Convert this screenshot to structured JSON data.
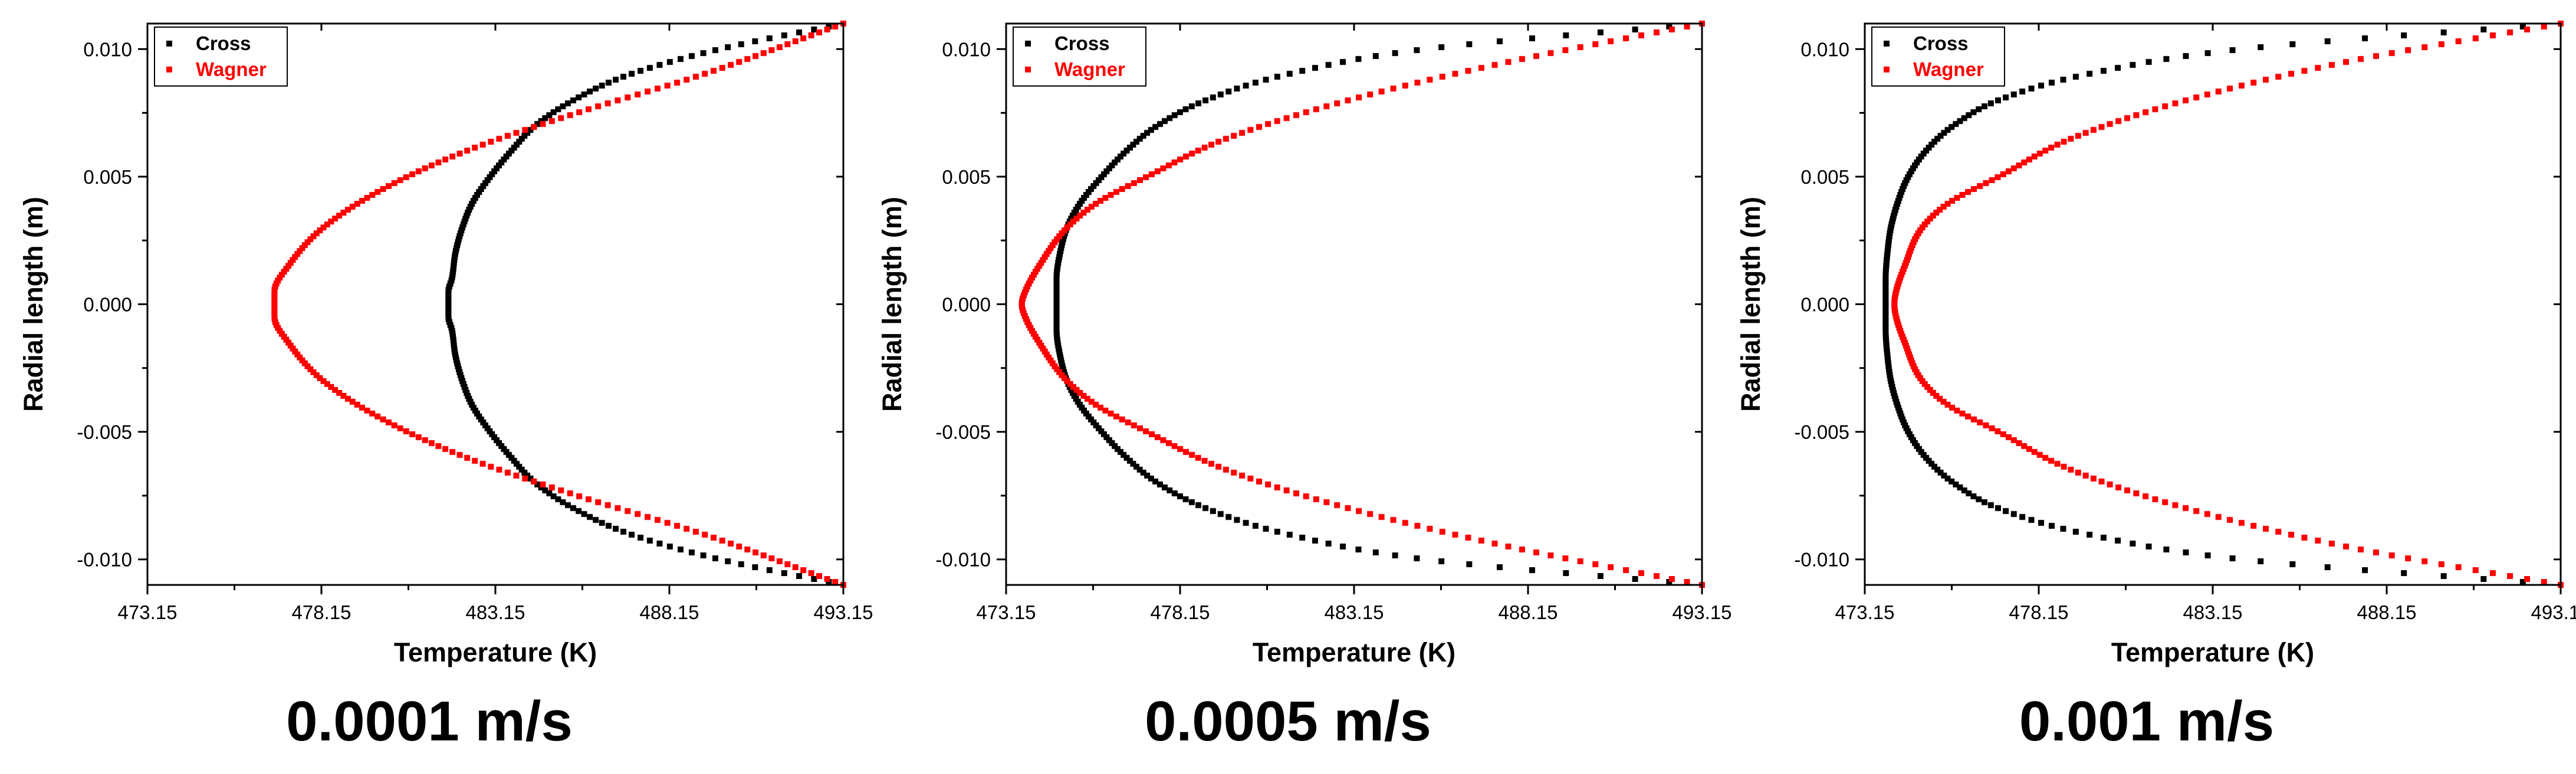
{
  "figure": {
    "panels": [
      {
        "caption": "0.0001 m/s"
      },
      {
        "caption": "0.0005 m/s"
      },
      {
        "caption": "0.001 m/s"
      }
    ]
  },
  "chart_data": [
    {
      "type": "scatter",
      "title": "",
      "xlabel": "Temperature (K)",
      "ylabel": "Radial length (m)",
      "xlim": [
        473.15,
        493.15
      ],
      "ylim": [
        -0.011,
        0.011
      ],
      "xticks": [
        "473.15",
        "478.15",
        "483.15",
        "488.15",
        "493.15"
      ],
      "yticks": [
        "-0.010",
        "-0.005",
        "0.000",
        "0.005",
        "0.010"
      ],
      "legend": "top-left",
      "series": [
        {
          "name": "Cross",
          "color": "#000000",
          "x": [
            493.15,
            489.6,
            487.0,
            485.4,
            484.3,
            483.6,
            483.0,
            482.5,
            482.2,
            482.0,
            481.9,
            481.8,
            481.8,
            481.8,
            481.9,
            482.0,
            482.2,
            482.5,
            483.0,
            483.6,
            484.3,
            485.4,
            487.0,
            489.6,
            493.15
          ],
          "y": [
            0.011,
            0.01,
            0.009,
            0.008,
            0.007,
            0.006,
            0.005,
            0.004,
            0.003,
            0.002,
            0.001,
            0.0005,
            0.0,
            -0.0005,
            -0.001,
            -0.002,
            -0.003,
            -0.004,
            -0.005,
            -0.006,
            -0.007,
            -0.008,
            -0.009,
            -0.01,
            -0.011
          ]
        },
        {
          "name": "Wagner",
          "color": "#ff0000",
          "x": [
            493.15,
            489.1,
            485.5,
            482.3,
            479.9,
            478.2,
            477.2,
            476.8,
            476.8,
            477.2,
            478.2,
            479.9,
            482.3,
            485.5,
            489.1,
            493.15
          ],
          "y": [
            0.011,
            0.009,
            0.0075,
            0.006,
            0.0045,
            0.003,
            0.0015,
            0.0005,
            -0.0005,
            -0.0015,
            -0.003,
            -0.0045,
            -0.006,
            -0.0075,
            -0.009,
            -0.011
          ]
        }
      ]
    },
    {
      "type": "scatter",
      "title": "",
      "xlabel": "Temperature (K)",
      "ylabel": "Radial length (m)",
      "xlim": [
        473.15,
        493.15
      ],
      "ylim": [
        -0.011,
        0.011
      ],
      "xticks": [
        "473.15",
        "478.15",
        "483.15",
        "488.15",
        "493.15"
      ],
      "yticks": [
        "-0.010",
        "-0.005",
        "0.000",
        "0.005",
        "0.010"
      ],
      "legend": "top-left",
      "series": [
        {
          "name": "Cross",
          "color": "#000000",
          "x": [
            493.15,
            485.2,
            481.2,
            478.9,
            477.5,
            476.6,
            475.9,
            475.3,
            474.9,
            474.7,
            474.6,
            474.6,
            474.6,
            474.7,
            474.9,
            475.3,
            475.9,
            476.6,
            477.5,
            478.9,
            481.2,
            485.2,
            493.15
          ],
          "y": [
            0.011,
            0.01,
            0.009,
            0.008,
            0.007,
            0.006,
            0.005,
            0.004,
            0.003,
            0.002,
            0.001,
            0.0,
            -0.001,
            -0.002,
            -0.003,
            -0.004,
            -0.005,
            -0.006,
            -0.007,
            -0.008,
            -0.009,
            -0.01,
            -0.011
          ]
        },
        {
          "name": "Wagner",
          "color": "#ff0000",
          "x": [
            493.15,
            487.6,
            483.0,
            479.5,
            477.2,
            475.8,
            474.9,
            474.1,
            473.7,
            473.6,
            473.7,
            474.1,
            474.9,
            475.8,
            477.2,
            479.5,
            483.0,
            487.6,
            493.15
          ],
          "y": [
            0.011,
            0.0095,
            0.008,
            0.0065,
            0.005,
            0.004,
            0.003,
            0.0015,
            0.0005,
            0.0,
            -0.0005,
            -0.0015,
            -0.003,
            -0.004,
            -0.005,
            -0.0065,
            -0.008,
            -0.0095,
            -0.011
          ]
        }
      ]
    },
    {
      "type": "scatter",
      "title": "",
      "xlabel": "Temperature (K)",
      "ylabel": "Radial length (m)",
      "xlim": [
        473.15,
        493.15
      ],
      "ylim": [
        -0.011,
        0.011
      ],
      "xticks": [
        "473.15",
        "478.15",
        "483.15",
        "488.15",
        "493.15"
      ],
      "yticks": [
        "-0.010",
        "-0.005",
        "0.000",
        "0.005",
        "0.010"
      ],
      "legend": "top-left",
      "series": [
        {
          "name": "Cross",
          "color": "#000000",
          "x": [
            493.15,
            484.0,
            479.5,
            477.0,
            475.7,
            474.9,
            474.4,
            474.1,
            473.9,
            473.8,
            473.75,
            473.75,
            473.75,
            473.8,
            473.9,
            474.1,
            474.4,
            474.9,
            475.7,
            477.0,
            479.5,
            484.0,
            493.15
          ],
          "y": [
            0.011,
            0.01,
            0.009,
            0.008,
            0.007,
            0.006,
            0.005,
            0.004,
            0.003,
            0.002,
            0.001,
            0.0,
            -0.001,
            -0.002,
            -0.003,
            -0.004,
            -0.005,
            -0.006,
            -0.007,
            -0.008,
            -0.009,
            -0.01,
            -0.011
          ]
        },
        {
          "name": "Wagner",
          "color": "#ff0000",
          "x": [
            493.15,
            487.0,
            482.4,
            479.1,
            477.0,
            475.6,
            474.8,
            474.3,
            474.05,
            474.0,
            474.05,
            474.3,
            474.8,
            475.6,
            477.0,
            479.1,
            482.4,
            487.0,
            493.15
          ],
          "y": [
            0.011,
            0.0095,
            0.008,
            0.0065,
            0.005,
            0.004,
            0.003,
            0.0015,
            0.0005,
            0.0,
            -0.0005,
            -0.0015,
            -0.003,
            -0.004,
            -0.005,
            -0.0065,
            -0.008,
            -0.0095,
            -0.011
          ]
        }
      ]
    }
  ]
}
